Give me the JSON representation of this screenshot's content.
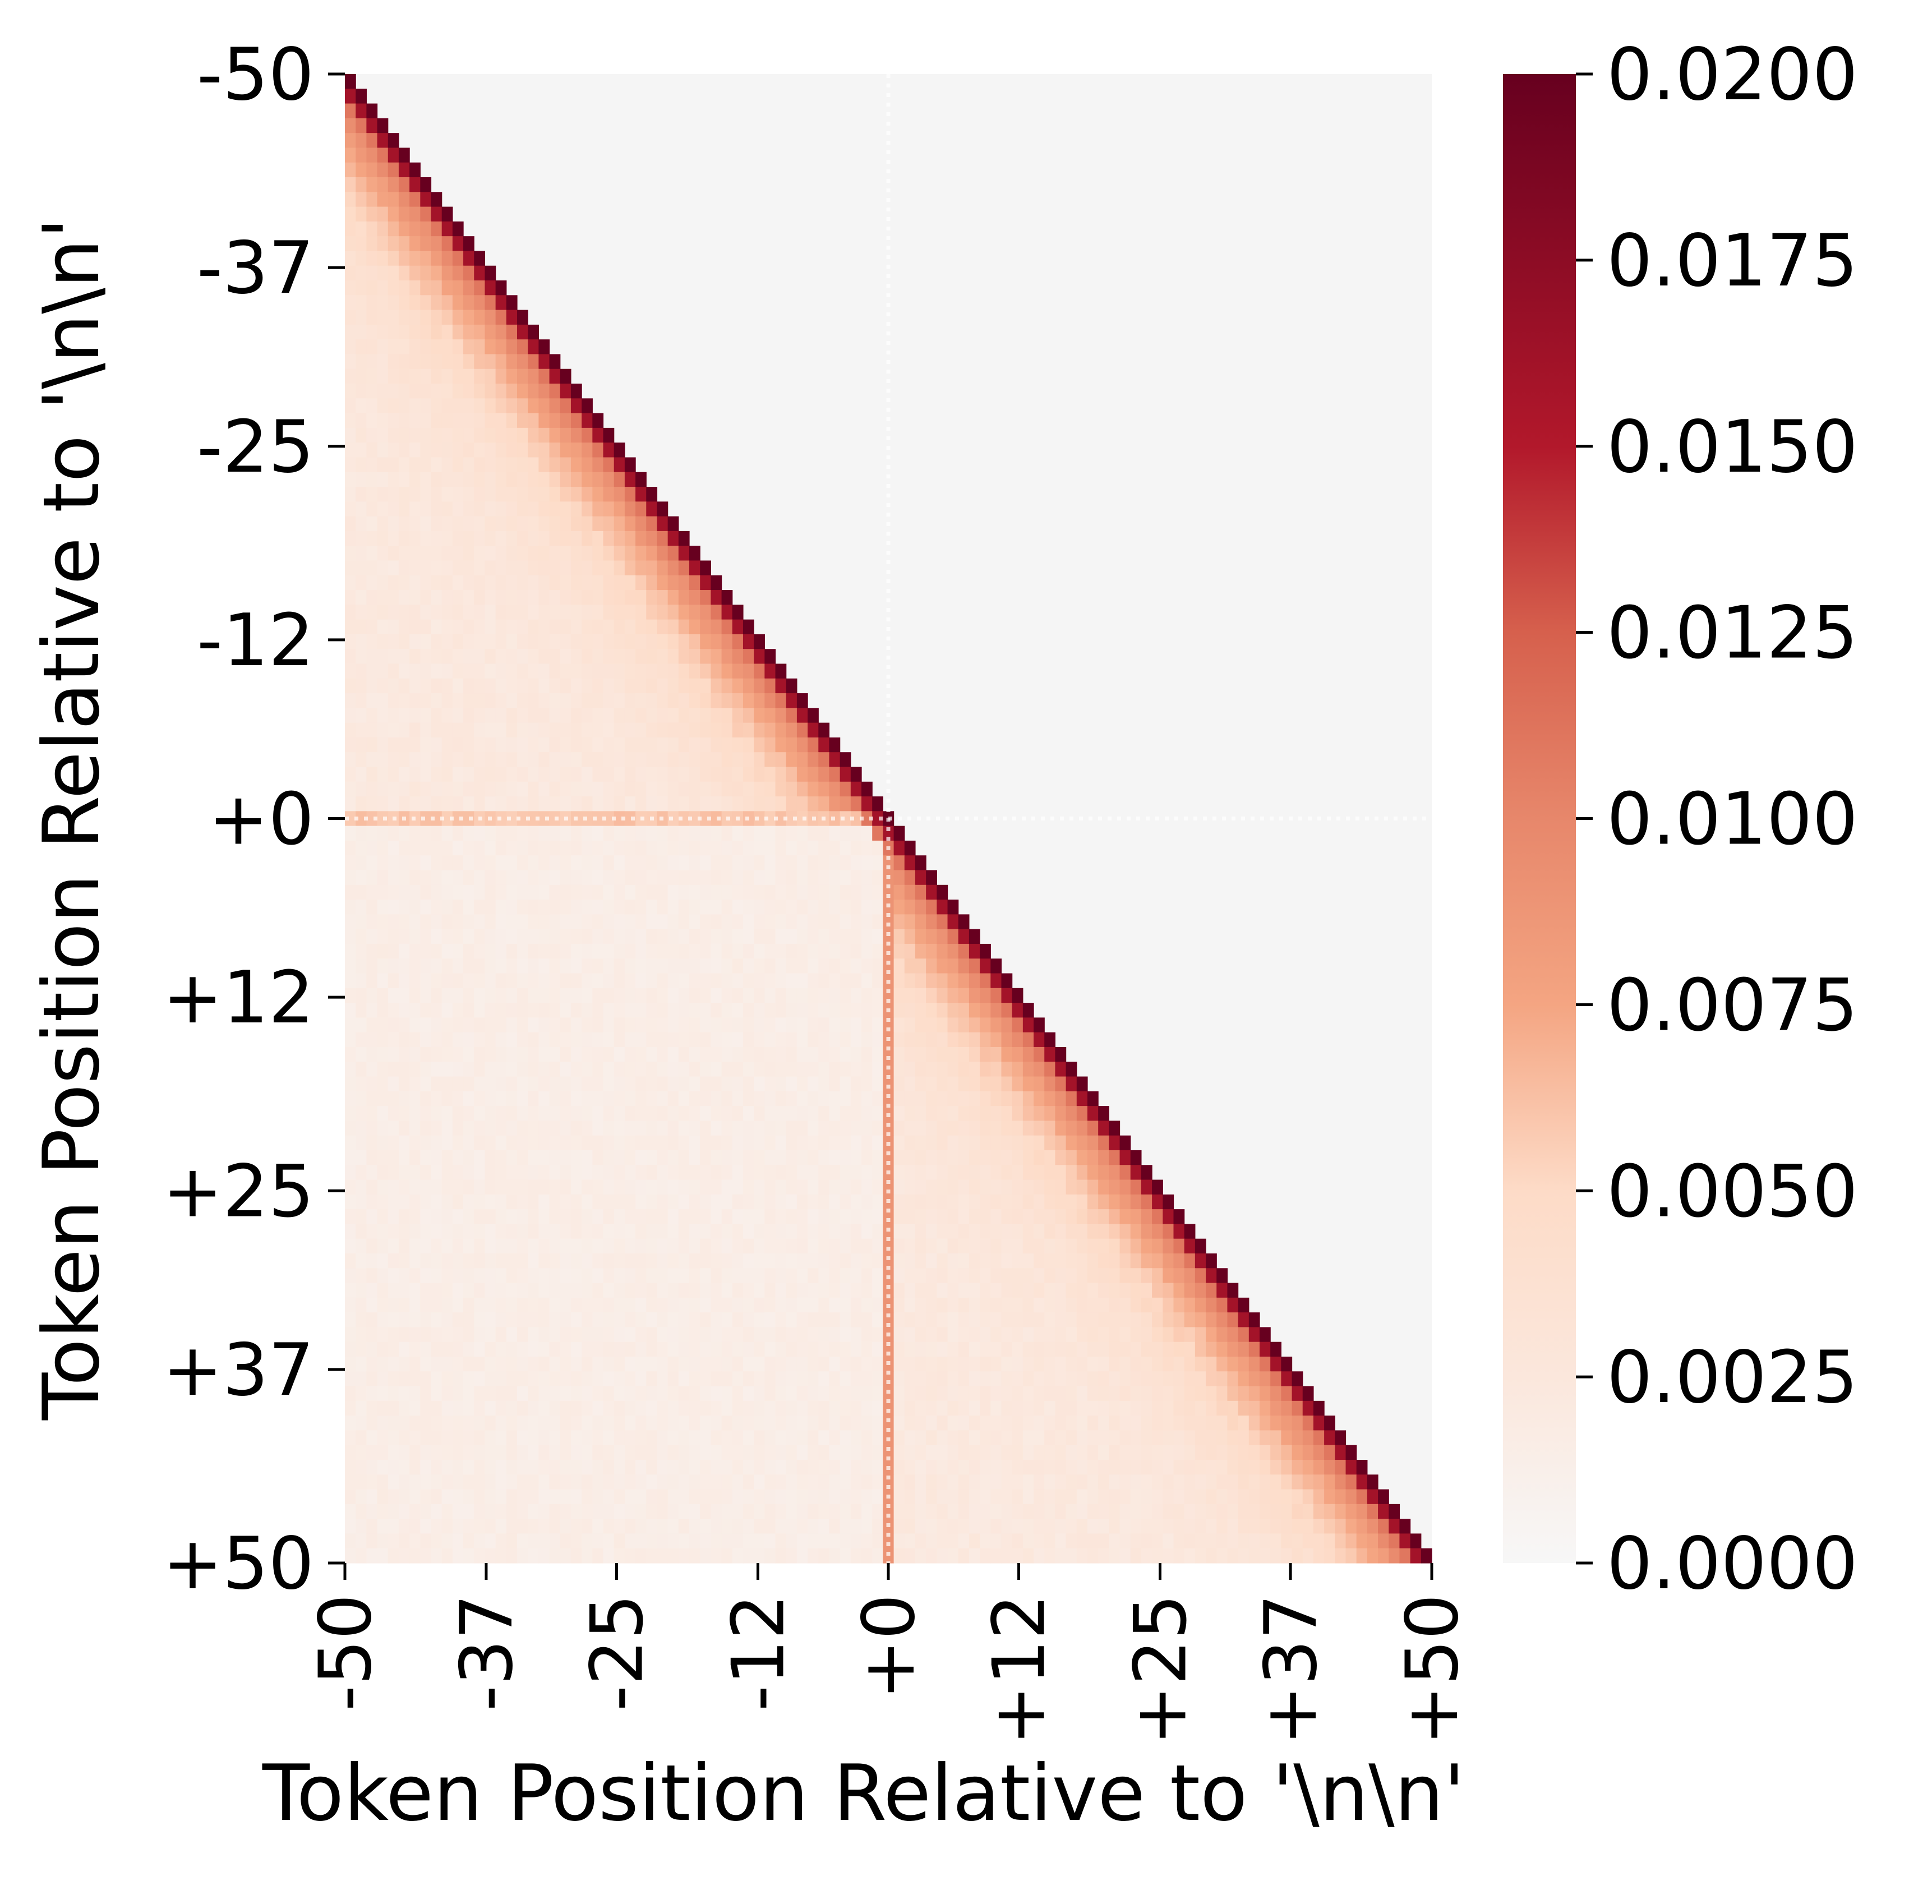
{
  "chart_data": {
    "type": "heatmap",
    "title": "",
    "xlabel": "Token Position Relative to '\\n\\n'",
    "ylabel": "Token Position Relative to '\\n\\n'",
    "x_range": [
      -50,
      50
    ],
    "y_range": [
      -50,
      50
    ],
    "x_tick_labels": [
      "-50",
      "-37",
      "-25",
      "-12",
      "+0",
      "+12",
      "+25",
      "+37",
      "+50"
    ],
    "y_tick_labels": [
      "-50",
      "-37",
      "-25",
      "-12",
      "+0",
      "+12",
      "+25",
      "+37",
      "+50"
    ],
    "tick_values": [
      -50,
      -37,
      -25,
      -12,
      0,
      12,
      25,
      37,
      50
    ],
    "colorbar": {
      "min": 0.0,
      "max": 0.02,
      "colormap": "RdBu_r (upper half: white to dark red)",
      "tick_values": [
        0.0,
        0.0025,
        0.005,
        0.0075,
        0.01,
        0.0125,
        0.015,
        0.0175,
        0.02
      ],
      "tick_labels": [
        "0.0000",
        "0.0025",
        "0.0050",
        "0.0075",
        "0.0100",
        "0.0125",
        "0.0150",
        "0.0175",
        "0.0200"
      ]
    },
    "masked_upper_triangle": true,
    "masked_color": "#f5f5f5",
    "separator_position": 0,
    "description_values": {
      "diagonal": 0.02,
      "separator_column_below": 0.009,
      "separator_row_left": 0.006,
      "lower_left_block": 0.0015,
      "near_diagonal_decay": 0.006
    }
  }
}
